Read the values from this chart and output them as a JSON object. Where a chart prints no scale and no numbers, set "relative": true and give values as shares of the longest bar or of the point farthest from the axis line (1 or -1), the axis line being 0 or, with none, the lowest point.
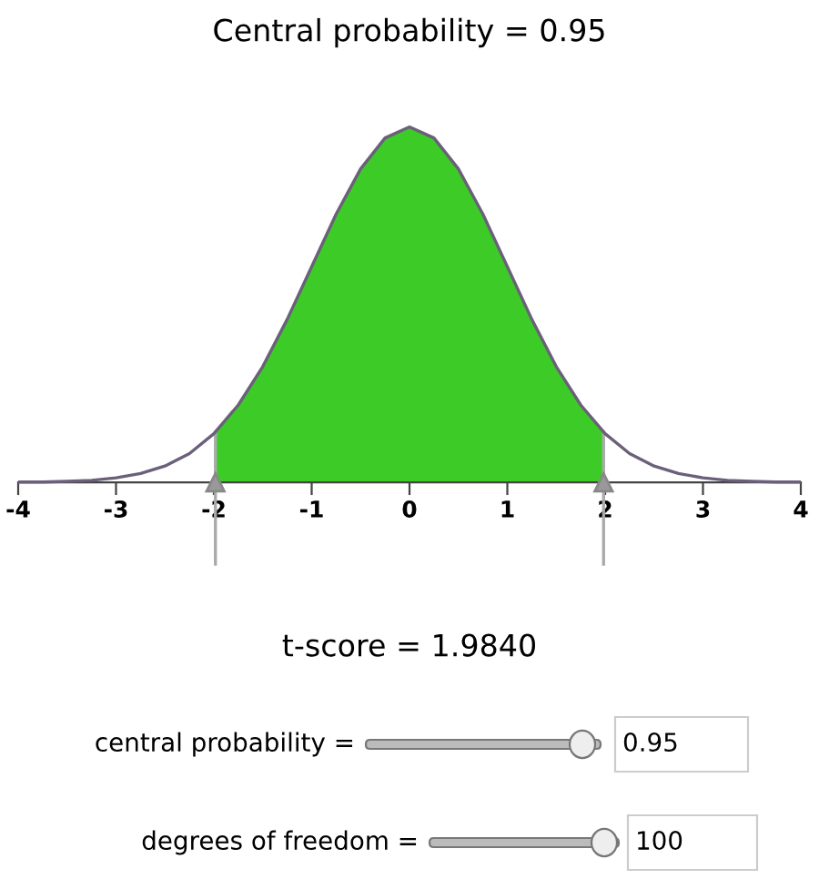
{
  "chart_data": {
    "type": "area",
    "title": "Central probability = 0.95",
    "relative": true,
    "xlim": [
      -4,
      4
    ],
    "xticks": [
      -4,
      -3,
      -2,
      -1,
      0,
      1,
      2,
      3,
      4
    ],
    "grid": false,
    "series": [
      {
        "type": "line",
        "color": "#6b5f7a",
        "x": [
          -4,
          -3.75,
          -3.5,
          -3.25,
          -3,
          -2.75,
          -2.5,
          -2.25,
          -2,
          -1.75,
          -1.5,
          -1.25,
          -1,
          -0.75,
          -0.5,
          -0.25,
          0,
          0.25,
          0.5,
          0.75,
          1,
          1.25,
          1.5,
          1.75,
          2,
          2.25,
          2.5,
          2.75,
          3,
          3.25,
          3.5,
          3.75,
          4
        ],
        "values": [
          0.001,
          0.001,
          0.003,
          0.006,
          0.013,
          0.025,
          0.046,
          0.081,
          0.137,
          0.218,
          0.326,
          0.459,
          0.607,
          0.755,
          0.882,
          0.969,
          1,
          0.969,
          0.882,
          0.755,
          0.607,
          0.459,
          0.326,
          0.218,
          0.137,
          0.081,
          0.046,
          0.025,
          0.013,
          0.006,
          0.003,
          0.001,
          0.001
        ]
      },
      {
        "type": "area",
        "color": "#3dcb27",
        "x": [
          -1.984,
          -1.75,
          -1.5,
          -1.25,
          -1,
          -0.75,
          -0.5,
          -0.25,
          0,
          0.25,
          0.5,
          0.75,
          1,
          1.25,
          1.5,
          1.75,
          1.984
        ],
        "values": [
          0.142,
          0.218,
          0.326,
          0.459,
          0.607,
          0.755,
          0.882,
          0.969,
          1,
          0.969,
          0.882,
          0.755,
          0.607,
          0.459,
          0.326,
          0.218,
          0.142
        ]
      }
    ],
    "ref_lines": [
      {
        "axis": "x",
        "value": -1.984,
        "color": "#aaaaaa"
      },
      {
        "axis": "x",
        "value": 1.984,
        "color": "#aaaaaa"
      }
    ],
    "annotations": [
      "t-score = 1.9840",
      "central probability =",
      "0.95",
      "degrees of freedom =",
      "100"
    ]
  }
}
